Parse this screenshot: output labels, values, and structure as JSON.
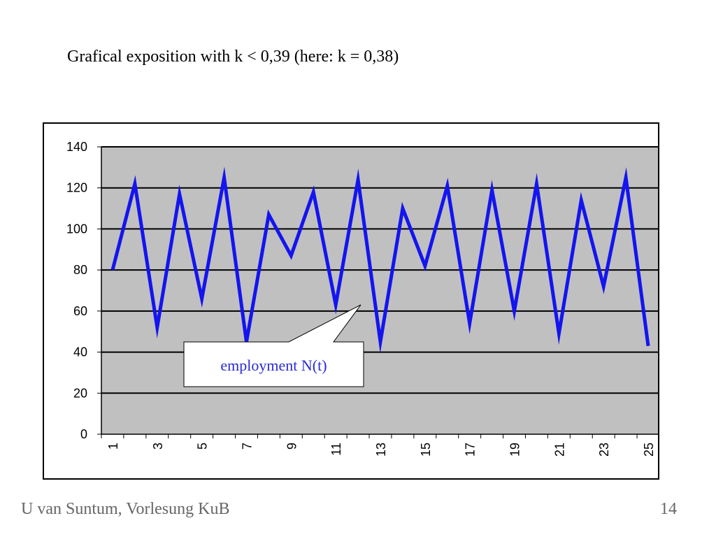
{
  "slide": {
    "title": "Grafical exposition with k < 0,39 (here: k = 0,38)",
    "footer_left": "U van Suntum, Vorlesung KuB",
    "page_number": "14"
  },
  "chart_data": {
    "type": "line",
    "title": "",
    "xlabel": "",
    "ylabel": "",
    "x": [
      1,
      2,
      3,
      4,
      5,
      6,
      7,
      8,
      9,
      10,
      11,
      12,
      13,
      14,
      15,
      16,
      17,
      18,
      19,
      20,
      21,
      22,
      23,
      24,
      25
    ],
    "x_tick_labels": [
      "1",
      "3",
      "5",
      "7",
      "9",
      "11",
      "13",
      "15",
      "17",
      "19",
      "21",
      "23",
      "25"
    ],
    "y_tick_labels": [
      "0",
      "20",
      "40",
      "60",
      "80",
      "100",
      "120",
      "140"
    ],
    "ylim": [
      0,
      140
    ],
    "grid": true,
    "series": [
      {
        "name": "",
        "values": [
          80,
          122,
          52,
          117,
          66,
          125,
          45,
          107,
          87,
          118,
          63,
          124,
          45,
          110,
          82,
          121,
          54,
          119,
          60,
          122,
          49,
          114,
          72,
          125,
          43
        ]
      }
    ],
    "annotation": {
      "text": "employment N(t)"
    },
    "colors": {
      "line": "#1414f0",
      "plot_background": "#c0c0c0",
      "gridline": "#000000",
      "annotation_text": "#2a2ad6"
    }
  }
}
